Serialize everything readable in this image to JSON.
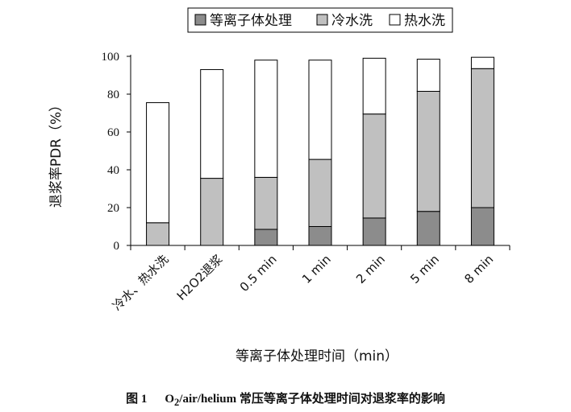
{
  "chart_data": {
    "type": "bar",
    "stacked": true,
    "categories": [
      "冷水、热水洗",
      "H2O2退浆",
      "0.5 min",
      "1 min",
      "2 min",
      "5 min",
      "8 min"
    ],
    "series": [
      {
        "name": "等离子体处理",
        "color": "#8c8c8c",
        "values": [
          0,
          0,
          8.5,
          10,
          14.5,
          18,
          20
        ]
      },
      {
        "name": "冷水洗",
        "color": "#c0c0c0",
        "values": [
          12,
          35.5,
          27.5,
          35.5,
          55,
          63.5,
          73.5
        ]
      },
      {
        "name": "热水洗",
        "color": "#ffffff",
        "values": [
          63.5,
          57.5,
          62,
          52.5,
          29.5,
          17,
          6
        ]
      }
    ],
    "ylim": [
      0,
      100
    ],
    "yticks": [
      0,
      20,
      40,
      60,
      80,
      100
    ],
    "xlabel": "等离子体处理时间（min）",
    "ylabel": "退浆率PDR（%）",
    "legend_position": "top",
    "grid": false
  },
  "caption": {
    "figure_number": "图 1",
    "formula_prefix": "O",
    "formula_subscript": "2",
    "text": "/air/helium 常压等离子体处理时间对退浆率的影响"
  }
}
